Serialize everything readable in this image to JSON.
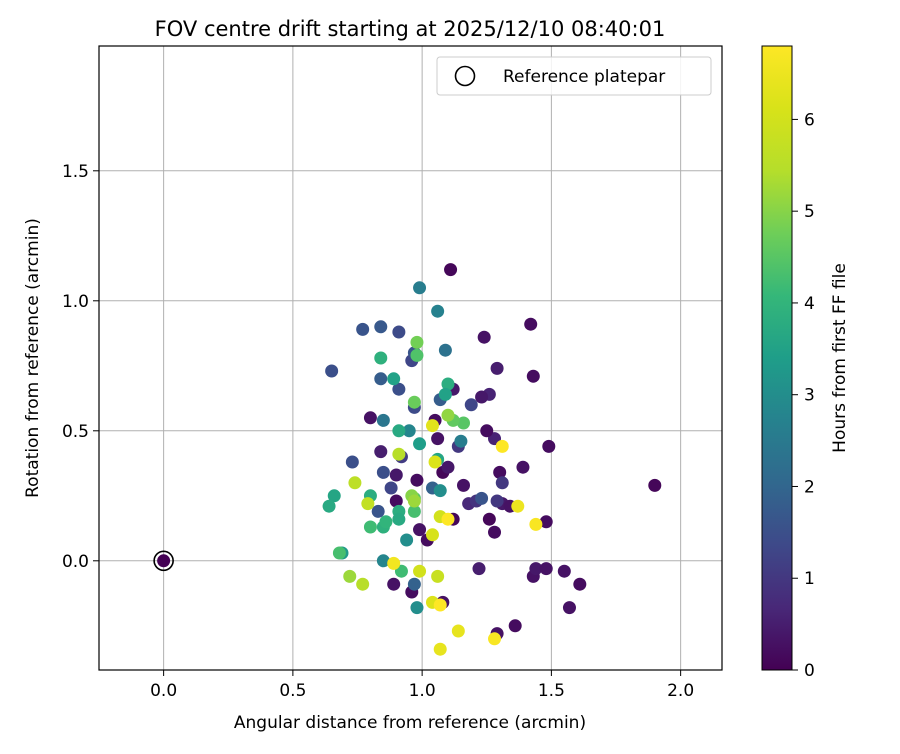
{
  "chart_data": {
    "type": "scatter",
    "title": "FOV centre drift starting at 2025/12/10 08:40:01",
    "xlabel": "Angular distance from reference (arcmin)",
    "ylabel": "Rotation from reference (arcmin)",
    "xlim": [
      -0.25,
      2.16
    ],
    "ylim": [
      -0.42,
      1.98
    ],
    "xticks": [
      0.0,
      0.5,
      1.0,
      1.5,
      2.0
    ],
    "xtick_labels": [
      "0.0",
      "0.5",
      "1.0",
      "1.5",
      "2.0"
    ],
    "yticks": [
      0.0,
      0.5,
      1.0,
      1.5
    ],
    "ytick_labels": [
      "0.0",
      "0.5",
      "1.0",
      "1.5"
    ],
    "grid": true,
    "legend": {
      "position": "upper-right",
      "label": "Reference platepar"
    },
    "reference_point": {
      "x": 0.0,
      "y": 0.0
    },
    "colorbar": {
      "label": "Hours from first FF file",
      "min": 0,
      "max": 6.8,
      "ticks": [
        0,
        1,
        2,
        3,
        4,
        5,
        6
      ],
      "tick_labels": [
        "0",
        "1",
        "2",
        "3",
        "4",
        "5",
        "6"
      ],
      "colormap": "viridis"
    },
    "points": [
      {
        "x": 0.0,
        "y": 0.0,
        "h": 0.0
      },
      {
        "x": 1.11,
        "y": 1.12,
        "h": 0.1
      },
      {
        "x": 1.9,
        "y": 0.29,
        "h": 0.1
      },
      {
        "x": 1.42,
        "y": 0.91,
        "h": 0.2
      },
      {
        "x": 1.43,
        "y": 0.71,
        "h": 0.2
      },
      {
        "x": 1.24,
        "y": 0.86,
        "h": 0.3
      },
      {
        "x": 1.49,
        "y": 0.44,
        "h": 0.2
      },
      {
        "x": 1.29,
        "y": 0.74,
        "h": 0.5
      },
      {
        "x": 1.06,
        "y": 0.47,
        "h": 0.3
      },
      {
        "x": 1.12,
        "y": 0.66,
        "h": 0.4
      },
      {
        "x": 1.26,
        "y": 0.64,
        "h": 0.6
      },
      {
        "x": 1.05,
        "y": 0.54,
        "h": 0.2
      },
      {
        "x": 1.08,
        "y": 0.34,
        "h": 0.1
      },
      {
        "x": 1.16,
        "y": 0.29,
        "h": 0.3
      },
      {
        "x": 1.12,
        "y": 0.16,
        "h": 0.1
      },
      {
        "x": 1.02,
        "y": 0.08,
        "h": 0.2
      },
      {
        "x": 0.99,
        "y": 0.12,
        "h": 0.3
      },
      {
        "x": 0.98,
        "y": 0.31,
        "h": 0.2
      },
      {
        "x": 0.9,
        "y": 0.33,
        "h": 0.4
      },
      {
        "x": 0.8,
        "y": 0.55,
        "h": 0.3
      },
      {
        "x": 0.84,
        "y": 0.42,
        "h": 0.5
      },
      {
        "x": 0.9,
        "y": 0.23,
        "h": 0.2
      },
      {
        "x": 1.26,
        "y": 0.16,
        "h": 0.1
      },
      {
        "x": 1.28,
        "y": 0.11,
        "h": 0.2
      },
      {
        "x": 1.31,
        "y": 0.22,
        "h": 0.4
      },
      {
        "x": 1.34,
        "y": 0.21,
        "h": 0.3
      },
      {
        "x": 1.39,
        "y": 0.36,
        "h": 0.3
      },
      {
        "x": 1.3,
        "y": 0.34,
        "h": 0.2
      },
      {
        "x": 1.28,
        "y": 0.47,
        "h": 0.6
      },
      {
        "x": 1.23,
        "y": 0.63,
        "h": 0.4
      },
      {
        "x": 1.25,
        "y": 0.5,
        "h": 0.2
      },
      {
        "x": 1.43,
        "y": -0.06,
        "h": 0.3
      },
      {
        "x": 1.44,
        "y": -0.03,
        "h": 0.4
      },
      {
        "x": 1.48,
        "y": -0.03,
        "h": 0.3
      },
      {
        "x": 1.55,
        "y": -0.04,
        "h": 0.3
      },
      {
        "x": 1.61,
        "y": -0.09,
        "h": 0.2
      },
      {
        "x": 1.57,
        "y": -0.18,
        "h": 0.3
      },
      {
        "x": 1.48,
        "y": 0.15,
        "h": 0.2
      },
      {
        "x": 1.36,
        "y": -0.25,
        "h": 0.2
      },
      {
        "x": 1.29,
        "y": -0.28,
        "h": 0.3
      },
      {
        "x": 1.08,
        "y": -0.16,
        "h": 0.3
      },
      {
        "x": 0.96,
        "y": -0.12,
        "h": 0.2
      },
      {
        "x": 0.89,
        "y": -0.09,
        "h": 0.3
      },
      {
        "x": 1.22,
        "y": -0.03,
        "h": 0.5
      },
      {
        "x": 1.1,
        "y": 0.36,
        "h": 0.4
      },
      {
        "x": 1.18,
        "y": 0.22,
        "h": 0.7
      },
      {
        "x": 1.21,
        "y": 0.23,
        "h": 0.9
      },
      {
        "x": 1.29,
        "y": 0.23,
        "h": 1.0
      },
      {
        "x": 1.31,
        "y": 0.3,
        "h": 1.0
      },
      {
        "x": 1.19,
        "y": 0.6,
        "h": 1.3
      },
      {
        "x": 1.23,
        "y": 0.24,
        "h": 1.6
      },
      {
        "x": 1.14,
        "y": 0.44,
        "h": 1.0
      },
      {
        "x": 0.92,
        "y": 0.4,
        "h": 1.1
      },
      {
        "x": 0.88,
        "y": 0.28,
        "h": 1.3
      },
      {
        "x": 0.85,
        "y": 0.34,
        "h": 1.5
      },
      {
        "x": 0.83,
        "y": 0.19,
        "h": 1.6
      },
      {
        "x": 0.73,
        "y": 0.38,
        "h": 1.5
      },
      {
        "x": 0.65,
        "y": 0.73,
        "h": 1.5
      },
      {
        "x": 0.77,
        "y": 0.89,
        "h": 1.6
      },
      {
        "x": 0.84,
        "y": 0.9,
        "h": 1.7
      },
      {
        "x": 0.91,
        "y": 0.88,
        "h": 1.4
      },
      {
        "x": 0.96,
        "y": 0.77,
        "h": 1.3
      },
      {
        "x": 0.97,
        "y": 0.8,
        "h": 1.6
      },
      {
        "x": 0.84,
        "y": 0.7,
        "h": 1.8
      },
      {
        "x": 0.91,
        "y": 0.66,
        "h": 1.5
      },
      {
        "x": 0.97,
        "y": 0.59,
        "h": 1.4
      },
      {
        "x": 1.07,
        "y": 0.62,
        "h": 1.8
      },
      {
        "x": 1.04,
        "y": 0.28,
        "h": 1.9
      },
      {
        "x": 0.97,
        "y": -0.09,
        "h": 1.9
      },
      {
        "x": 1.09,
        "y": 0.81,
        "h": 2.3
      },
      {
        "x": 1.06,
        "y": 0.96,
        "h": 2.7
      },
      {
        "x": 0.99,
        "y": 1.05,
        "h": 2.6
      },
      {
        "x": 0.85,
        "y": 0.54,
        "h": 2.4
      },
      {
        "x": 0.95,
        "y": 0.5,
        "h": 2.8
      },
      {
        "x": 1.15,
        "y": 0.46,
        "h": 2.6
      },
      {
        "x": 1.07,
        "y": 0.27,
        "h": 3.0
      },
      {
        "x": 0.85,
        "y": 0.0,
        "h": 2.8
      },
      {
        "x": 0.98,
        "y": -0.18,
        "h": 3.0
      },
      {
        "x": 0.94,
        "y": 0.08,
        "h": 3.0
      },
      {
        "x": 0.69,
        "y": 0.03,
        "h": 3.3
      },
      {
        "x": 0.66,
        "y": 0.25,
        "h": 3.6
      },
      {
        "x": 0.64,
        "y": 0.21,
        "h": 3.7
      },
      {
        "x": 0.84,
        "y": 0.78,
        "h": 3.9
      },
      {
        "x": 0.89,
        "y": 0.7,
        "h": 3.5
      },
      {
        "x": 0.91,
        "y": 0.5,
        "h": 3.7
      },
      {
        "x": 0.99,
        "y": 0.45,
        "h": 3.4
      },
      {
        "x": 1.06,
        "y": 0.39,
        "h": 3.6
      },
      {
        "x": 0.91,
        "y": 0.19,
        "h": 3.8
      },
      {
        "x": 0.85,
        "y": 0.13,
        "h": 3.9
      },
      {
        "x": 0.8,
        "y": 0.13,
        "h": 4.2
      },
      {
        "x": 0.86,
        "y": 0.15,
        "h": 4.0
      },
      {
        "x": 0.91,
        "y": 0.16,
        "h": 3.7
      },
      {
        "x": 0.97,
        "y": 0.19,
        "h": 4.3
      },
      {
        "x": 0.97,
        "y": 0.24,
        "h": 4.5
      },
      {
        "x": 0.92,
        "y": -0.04,
        "h": 4.2
      },
      {
        "x": 0.68,
        "y": 0.03,
        "h": 4.3
      },
      {
        "x": 0.8,
        "y": 0.25,
        "h": 3.8
      },
      {
        "x": 1.1,
        "y": 0.68,
        "h": 3.8
      },
      {
        "x": 1.09,
        "y": 0.64,
        "h": 3.5
      },
      {
        "x": 1.16,
        "y": 0.53,
        "h": 4.5
      },
      {
        "x": 1.12,
        "y": 0.54,
        "h": 4.6
      },
      {
        "x": 0.97,
        "y": 0.61,
        "h": 4.7
      },
      {
        "x": 0.98,
        "y": 0.84,
        "h": 4.8
      },
      {
        "x": 0.98,
        "y": 0.79,
        "h": 4.4
      },
      {
        "x": 1.1,
        "y": 0.56,
        "h": 5.1
      },
      {
        "x": 0.96,
        "y": 0.25,
        "h": 5.0
      },
      {
        "x": 0.97,
        "y": 0.23,
        "h": 5.2
      },
      {
        "x": 0.72,
        "y": -0.06,
        "h": 5.2
      },
      {
        "x": 0.77,
        "y": -0.09,
        "h": 5.5
      },
      {
        "x": 0.74,
        "y": 0.3,
        "h": 5.6
      },
      {
        "x": 0.79,
        "y": 0.22,
        "h": 5.7
      },
      {
        "x": 0.91,
        "y": 0.41,
        "h": 5.5
      },
      {
        "x": 1.06,
        "y": -0.06,
        "h": 5.8
      },
      {
        "x": 0.99,
        "y": -0.04,
        "h": 6.0
      },
      {
        "x": 1.07,
        "y": 0.17,
        "h": 6.0
      },
      {
        "x": 1.04,
        "y": 0.1,
        "h": 6.1
      },
      {
        "x": 1.04,
        "y": 0.52,
        "h": 6.3
      },
      {
        "x": 1.05,
        "y": 0.38,
        "h": 6.2
      },
      {
        "x": 1.04,
        "y": -0.16,
        "h": 6.2
      },
      {
        "x": 1.07,
        "y": -0.34,
        "h": 6.4
      },
      {
        "x": 1.14,
        "y": -0.27,
        "h": 6.4
      },
      {
        "x": 1.37,
        "y": 0.21,
        "h": 6.5
      },
      {
        "x": 0.89,
        "y": -0.01,
        "h": 6.6
      },
      {
        "x": 1.1,
        "y": 0.16,
        "h": 6.8
      },
      {
        "x": 1.07,
        "y": -0.17,
        "h": 6.8
      },
      {
        "x": 1.28,
        "y": -0.3,
        "h": 6.7
      },
      {
        "x": 1.31,
        "y": 0.44,
        "h": 6.8
      },
      {
        "x": 1.44,
        "y": 0.14,
        "h": 6.7
      }
    ]
  }
}
